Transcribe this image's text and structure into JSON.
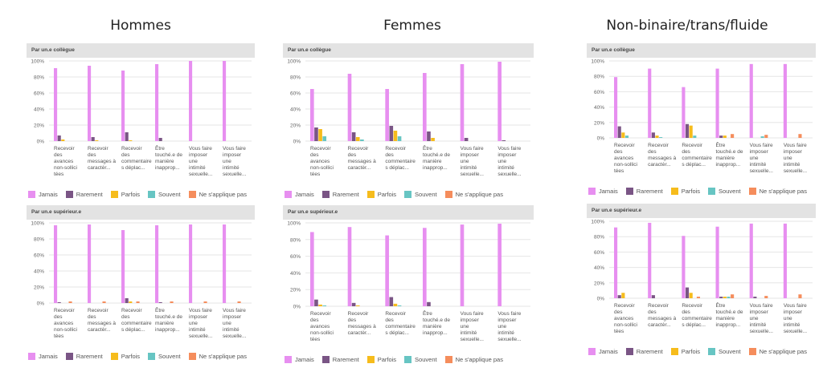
{
  "columns": [
    {
      "title": "Hommes"
    },
    {
      "title": "Femmes"
    },
    {
      "title": "Non-binaire/trans/fluide"
    }
  ],
  "legend": [
    {
      "name": "Jamais",
      "color": "#e78ff0"
    },
    {
      "name": "Rarement",
      "color": "#7a5585"
    },
    {
      "name": "Parfois",
      "color": "#f6bc1c"
    },
    {
      "name": "Souvent",
      "color": "#67c5c3"
    },
    {
      "name": "Ne s'applique pas",
      "color": "#f58d5c"
    }
  ],
  "chart_data": [
    {
      "type": "bar",
      "group": "Hommes",
      "title": "Par un.e collègue",
      "categories": [
        [
          "Recevoir",
          "des",
          "avances",
          "non-sollici",
          "tées"
        ],
        [
          "Recevoir",
          "des",
          "messages à",
          "caractèr..."
        ],
        [
          "Recevoir",
          "des",
          "commentaire",
          "s déplac..."
        ],
        [
          "Être",
          "touché.e de",
          "manière",
          "inapprop..."
        ],
        [
          "Vous faire",
          "imposer",
          "une",
          "intimité",
          "sexuelle..."
        ],
        [
          "Vous faire",
          "imposer",
          "une",
          "intimité",
          "sexuelle..."
        ]
      ],
      "ylim": [
        0,
        100
      ],
      "yticks": [
        "0%",
        "20%",
        "40%",
        "60%",
        "80%",
        "100%"
      ],
      "series": [
        {
          "name": "Jamais",
          "values": [
            91,
            94,
            88,
            96,
            100,
            100
          ]
        },
        {
          "name": "Rarement",
          "values": [
            7,
            5,
            11,
            4,
            0,
            0
          ]
        },
        {
          "name": "Parfois",
          "values": [
            2,
            1,
            1,
            0,
            0,
            0
          ]
        },
        {
          "name": "Souvent",
          "values": [
            0,
            0,
            0,
            0,
            0,
            0
          ]
        },
        {
          "name": "Ne s'applique pas",
          "values": [
            0,
            0,
            0,
            0,
            0,
            0
          ]
        }
      ]
    },
    {
      "type": "bar",
      "group": "Hommes",
      "title": "Par un.e supérieur.e",
      "categories": [
        [
          "Recevoir",
          "des",
          "avances",
          "non-sollici",
          "tées"
        ],
        [
          "Recevoir",
          "des",
          "messages à",
          "caractèr..."
        ],
        [
          "Recevoir",
          "des",
          "commentaire",
          "s déplac..."
        ],
        [
          "Être",
          "touché.e de",
          "manière",
          "inapprop..."
        ],
        [
          "Vous faire",
          "imposer",
          "une",
          "intimité",
          "sexuelle..."
        ],
        [
          "Vous faire",
          "imposer",
          "une",
          "intimité",
          "sexuelle..."
        ]
      ],
      "ylim": [
        0,
        100
      ],
      "yticks": [
        "0%",
        "20%",
        "40%",
        "60%",
        "80%",
        "100%"
      ],
      "series": [
        {
          "name": "Jamais",
          "values": [
            97,
            98,
            91,
            97,
            98,
            98
          ]
        },
        {
          "name": "Rarement",
          "values": [
            1,
            0,
            6,
            1,
            0,
            0
          ]
        },
        {
          "name": "Parfois",
          "values": [
            0,
            0,
            2,
            0,
            0,
            0
          ]
        },
        {
          "name": "Souvent",
          "values": [
            0,
            0,
            0,
            0,
            0,
            0
          ]
        },
        {
          "name": "Ne s'applique pas",
          "values": [
            2,
            2,
            2,
            2,
            2,
            2
          ]
        }
      ]
    },
    {
      "type": "bar",
      "group": "Femmes",
      "title": "Par un.e collègue",
      "categories": [
        [
          "Recevoir",
          "des",
          "avances",
          "non-sollici",
          "tées"
        ],
        [
          "Recevoir",
          "des",
          "messages à",
          "caractèr..."
        ],
        [
          "Recevoir",
          "des",
          "commentaire",
          "s déplac..."
        ],
        [
          "Être",
          "touché.e de",
          "manière",
          "inapprop..."
        ],
        [
          "Vous faire",
          "imposer",
          "une",
          "intimité",
          "sexuelle..."
        ],
        [
          "Vous faire",
          "imposer",
          "une",
          "intimité",
          "sexuelle..."
        ]
      ],
      "ylim": [
        0,
        100
      ],
      "yticks": [
        "0%",
        "20%",
        "40%",
        "60%",
        "80%",
        "100%"
      ],
      "series": [
        {
          "name": "Jamais",
          "values": [
            65,
            84,
            65,
            85,
            96,
            99
          ]
        },
        {
          "name": "Rarement",
          "values": [
            17,
            11,
            19,
            12,
            4,
            1
          ]
        },
        {
          "name": "Parfois",
          "values": [
            15,
            5,
            13,
            4,
            0,
            0
          ]
        },
        {
          "name": "Souvent",
          "values": [
            6,
            2,
            6,
            0,
            0,
            0
          ]
        },
        {
          "name": "Ne s'applique pas",
          "values": [
            0,
            0,
            0,
            0,
            0,
            0
          ]
        }
      ]
    },
    {
      "type": "bar",
      "group": "Femmes",
      "title": "Par un.e supérieur.e",
      "categories": [
        [
          "Recevoir",
          "des",
          "avances",
          "non-sollici",
          "tées"
        ],
        [
          "Recevoir",
          "des",
          "messages à",
          "caractèr..."
        ],
        [
          "Recevoir",
          "des",
          "commentaire",
          "s déplac..."
        ],
        [
          "Être",
          "touché.e de",
          "manière",
          "inapprop..."
        ],
        [
          "Vous faire",
          "imposer",
          "une",
          "intimité",
          "sexuelle..."
        ],
        [
          "Vous faire",
          "imposer",
          "une",
          "intimité",
          "sexuelle..."
        ]
      ],
      "ylim": [
        0,
        100
      ],
      "yticks": [
        "0%",
        "20%",
        "40%",
        "60%",
        "80%",
        "100%"
      ],
      "series": [
        {
          "name": "Jamais",
          "values": [
            89,
            95,
            85,
            94,
            98,
            99
          ]
        },
        {
          "name": "Rarement",
          "values": [
            8,
            4,
            11,
            5,
            0,
            0
          ]
        },
        {
          "name": "Parfois",
          "values": [
            2,
            1,
            3,
            0,
            0,
            0
          ]
        },
        {
          "name": "Souvent",
          "values": [
            1,
            0,
            1,
            0,
            0,
            0
          ]
        },
        {
          "name": "Ne s'applique pas",
          "values": [
            0,
            0,
            0,
            0,
            0,
            0
          ]
        }
      ]
    },
    {
      "type": "bar",
      "group": "Non-binaire/trans/fluide",
      "title": "Par un.e collègue",
      "categories": [
        [
          "Recevoir",
          "des",
          "avances",
          "non-sollici",
          "tées"
        ],
        [
          "Recevoir",
          "des",
          "messages à",
          "caractèr..."
        ],
        [
          "Recevoir",
          "des",
          "commentaire",
          "s déplac..."
        ],
        [
          "Être",
          "touché.e de",
          "manière",
          "inapprop..."
        ],
        [
          "Vous faire",
          "imposer",
          "une",
          "intimité",
          "sexuelle..."
        ],
        [
          "Vous faire",
          "imposer",
          "une",
          "intimité",
          "sexuelle..."
        ]
      ],
      "ylim": [
        0,
        100
      ],
      "yticks": [
        "0%",
        "20%",
        "40%",
        "60%",
        "80%",
        "100%"
      ],
      "series": [
        {
          "name": "Jamais",
          "values": [
            79,
            90,
            66,
            90,
            96,
            96
          ]
        },
        {
          "name": "Rarement",
          "values": [
            15,
            7,
            18,
            3,
            0,
            0
          ]
        },
        {
          "name": "Parfois",
          "values": [
            7,
            3,
            16,
            3,
            0,
            0
          ]
        },
        {
          "name": "Souvent",
          "values": [
            3,
            1,
            3,
            0,
            2,
            0
          ]
        },
        {
          "name": "Ne s'applique pas",
          "values": [
            0,
            0,
            0,
            5,
            4,
            5
          ]
        }
      ]
    },
    {
      "type": "bar",
      "group": "Non-binaire/trans/fluide",
      "title": "Par un.e supérieur.e",
      "categories": [
        [
          "Recevoir",
          "des",
          "avances",
          "non-sollici",
          "tées"
        ],
        [
          "Recevoir",
          "des",
          "messages à",
          "caractèr..."
        ],
        [
          "Recevoir",
          "des",
          "commentaire",
          "s déplac..."
        ],
        [
          "Être",
          "touché.e de",
          "manière",
          "inapprop..."
        ],
        [
          "Vous faire",
          "imposer",
          "une",
          "intimité",
          "sexuelle..."
        ],
        [
          "Vous faire",
          "imposer",
          "une",
          "intimité",
          "sexuelle..."
        ]
      ],
      "ylim": [
        0,
        100
      ],
      "yticks": [
        "0%",
        "20%",
        "40%",
        "60%",
        "80%",
        "100%"
      ],
      "series": [
        {
          "name": "Jamais",
          "values": [
            92,
            98,
            81,
            93,
            97,
            97
          ]
        },
        {
          "name": "Rarement",
          "values": [
            4,
            4,
            14,
            2,
            2,
            0
          ]
        },
        {
          "name": "Parfois",
          "values": [
            7,
            0,
            7,
            2,
            0,
            0
          ]
        },
        {
          "name": "Souvent",
          "values": [
            0,
            0,
            0,
            2,
            0,
            0
          ]
        },
        {
          "name": "Ne s'applique pas",
          "values": [
            0,
            0,
            2,
            5,
            3,
            5
          ]
        }
      ]
    }
  ]
}
